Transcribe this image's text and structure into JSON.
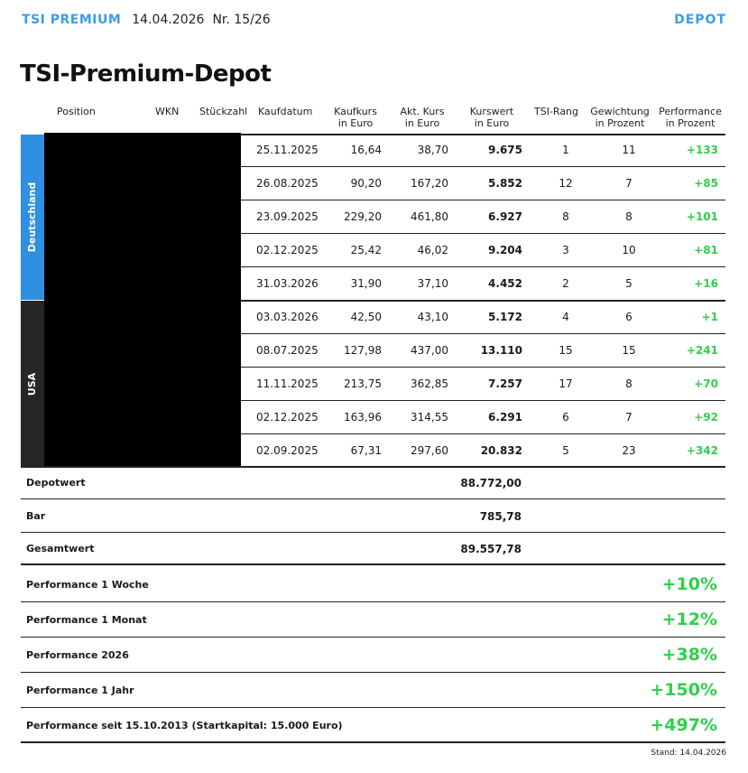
{
  "header": {
    "brand": "TSI PREMIUM",
    "date": "14.04.2026",
    "issue": "Nr. 15/26",
    "section": "DEPOT"
  },
  "title": "TSI-Premium-Depot",
  "columns": {
    "position": "Position",
    "wkn": "WKN",
    "stueckzahl": "Stückzahl",
    "kaufdatum": "Kaufdatum",
    "kaufkurs_1": "Kaufkurs",
    "kaufkurs_2": "in Euro",
    "akt_1": "Akt. Kurs",
    "akt_2": "in Euro",
    "wert_1": "Kurswert",
    "wert_2": "in Euro",
    "rang": "TSI-Rang",
    "gew_1": "Gewichtung",
    "gew_2": "in Prozent",
    "perf_1": "Performance",
    "perf_2": "in Prozent"
  },
  "groups": {
    "de": "Deutschland",
    "us": "USA"
  },
  "rows": [
    {
      "date": "25.11.2025",
      "kauf": "16,64",
      "akt": "38,70",
      "wert": "9.675",
      "rang": "1",
      "gew": "11",
      "perf": "+133"
    },
    {
      "date": "26.08.2025",
      "kauf": "90,20",
      "akt": "167,20",
      "wert": "5.852",
      "rang": "12",
      "gew": "7",
      "perf": "+85"
    },
    {
      "date": "23.09.2025",
      "kauf": "229,20",
      "akt": "461,80",
      "wert": "6.927",
      "rang": "8",
      "gew": "8",
      "perf": "+101"
    },
    {
      "date": "02.12.2025",
      "kauf": "25,42",
      "akt": "46,02",
      "wert": "9.204",
      "rang": "3",
      "gew": "10",
      "perf": "+81"
    },
    {
      "date": "31.03.2026",
      "kauf": "31,90",
      "akt": "37,10",
      "wert": "4.452",
      "rang": "2",
      "gew": "5",
      "perf": "+16"
    },
    {
      "date": "03.03.2026",
      "kauf": "42,50",
      "akt": "43,10",
      "wert": "5.172",
      "rang": "4",
      "gew": "6",
      "perf": "+1"
    },
    {
      "date": "08.07.2025",
      "kauf": "127,98",
      "akt": "437,00",
      "wert": "13.110",
      "rang": "15",
      "gew": "15",
      "perf": "+241"
    },
    {
      "date": "11.11.2025",
      "kauf": "213,75",
      "akt": "362,85",
      "wert": "7.257",
      "rang": "17",
      "gew": "8",
      "perf": "+70"
    },
    {
      "date": "02.12.2025",
      "kauf": "163,96",
      "akt": "314,55",
      "wert": "6.291",
      "rang": "6",
      "gew": "7",
      "perf": "+92"
    },
    {
      "date": "02.09.2025",
      "kauf": "67,31",
      "akt": "297,60",
      "wert": "20.832",
      "rang": "5",
      "gew": "23",
      "perf": "+342"
    }
  ],
  "summary": [
    {
      "label": "Depotwert",
      "value": "88.772,00"
    },
    {
      "label": "Bar",
      "value": "785,78"
    },
    {
      "label": "Gesamtwert",
      "value": "89.557,78"
    }
  ],
  "performance": [
    {
      "label": "Performance 1 Woche",
      "value": "+10%"
    },
    {
      "label": "Performance 1 Monat",
      "value": "+12%"
    },
    {
      "label": "Performance 2026",
      "value": "+38%"
    },
    {
      "label": "Performance 1 Jahr",
      "value": "+150%"
    },
    {
      "label": "Performance seit 15.10.2013 (Startkapital: 15.000 Euro)",
      "value": "+497%"
    }
  ],
  "footer": {
    "stand": "Stand: 14.04.2026"
  },
  "colors": {
    "accent": "#3b9ee8",
    "germany": "#2f8fe0",
    "usa": "#262626",
    "positive": "#2fd04b"
  }
}
